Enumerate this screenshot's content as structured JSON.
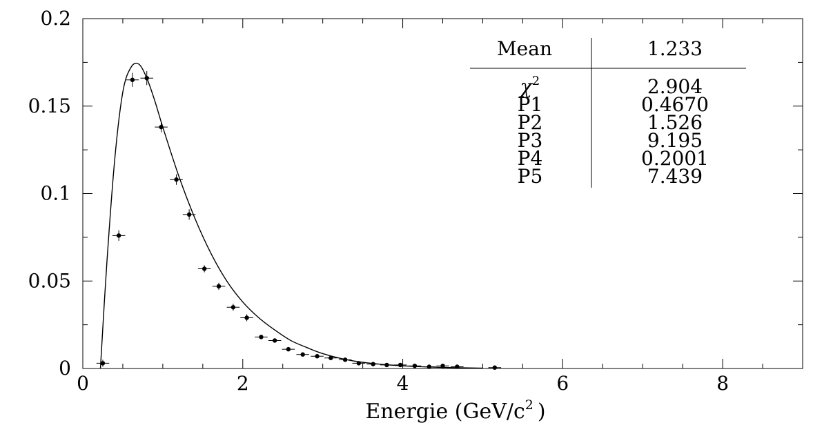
{
  "chart_data": {
    "type": "scatter",
    "xlabel": "Energie (GeV/c",
    "xlabel_sup": "2",
    "xlabel_close": ")",
    "ylabel": "",
    "xlim": [
      0,
      9
    ],
    "ylim": [
      0,
      0.2
    ],
    "x_ticks": [
      {
        "value": 0,
        "label": "0"
      },
      {
        "value": 2,
        "label": "2"
      },
      {
        "value": 4,
        "label": "4"
      },
      {
        "value": 6,
        "label": "6"
      },
      {
        "value": 8,
        "label": "8"
      }
    ],
    "y_ticks": [
      {
        "value": 0,
        "label": "0"
      },
      {
        "value": 0.05,
        "label": "0.05"
      },
      {
        "value": 0.1,
        "label": "0.1"
      },
      {
        "value": 0.15,
        "label": "0.15"
      },
      {
        "value": 0.2,
        "label": "0.2"
      }
    ],
    "x_minor_step": 0.5,
    "y_minor_step": 0.025,
    "grid": false,
    "legend": "none",
    "series": [
      {
        "kind": "points_with_errors",
        "x": [
          0.25,
          0.45,
          0.62,
          0.8,
          0.98,
          1.17,
          1.33,
          1.52,
          1.7,
          1.88,
          2.05,
          2.23,
          2.4,
          2.57,
          2.75,
          2.93,
          3.1,
          3.28,
          3.45,
          3.63,
          3.8,
          3.97,
          4.15,
          4.33,
          4.5,
          4.68,
          5.15
        ],
        "y": [
          0.003,
          0.076,
          0.165,
          0.166,
          0.138,
          0.108,
          0.088,
          0.057,
          0.047,
          0.035,
          0.029,
          0.018,
          0.016,
          0.011,
          0.008,
          0.007,
          0.006,
          0.005,
          0.003,
          0.0025,
          0.002,
          0.002,
          0.0015,
          0.001,
          0.0015,
          0.001,
          0.0005
        ],
        "xerr": [
          0.08,
          0.08,
          0.08,
          0.08,
          0.08,
          0.08,
          0.08,
          0.08,
          0.08,
          0.08,
          0.08,
          0.08,
          0.08,
          0.08,
          0.08,
          0.08,
          0.08,
          0.08,
          0.08,
          0.08,
          0.08,
          0.08,
          0.08,
          0.08,
          0.08,
          0.08,
          0.08
        ],
        "yerr": [
          0.002,
          0.003,
          0.004,
          0.004,
          0.003,
          0.003,
          0.003,
          0.002,
          0.002,
          0.002,
          0.002,
          0.001,
          0.001,
          0.001,
          0.001,
          0.001,
          0.001,
          0.001,
          0.001,
          0.001,
          0.001,
          0.001,
          0.001,
          0.001,
          0.001,
          0.001,
          0.001
        ]
      },
      {
        "kind": "fit_curve",
        "x": [
          0.22,
          0.3,
          0.4,
          0.5,
          0.6,
          0.7,
          0.8,
          0.9,
          1.0,
          1.2,
          1.4,
          1.6,
          1.8,
          2.0,
          2.2,
          2.4,
          2.6,
          2.8,
          3.0,
          3.3,
          3.6,
          4.0,
          4.5,
          5.0
        ],
        "y": [
          0.0,
          0.06,
          0.12,
          0.158,
          0.172,
          0.174,
          0.166,
          0.153,
          0.138,
          0.11,
          0.086,
          0.066,
          0.05,
          0.038,
          0.029,
          0.022,
          0.016,
          0.012,
          0.0085,
          0.005,
          0.003,
          0.0015,
          0.0006,
          0.0002
        ]
      }
    ],
    "stats": {
      "header_label": "Mean",
      "header_value": "1.233",
      "rows": [
        {
          "label": "χ",
          "sup": "2",
          "value": "2.904"
        },
        {
          "label": "P1",
          "sup": "",
          "value": "0.4670"
        },
        {
          "label": "P2",
          "sup": "",
          "value": "1.526"
        },
        {
          "label": "P3",
          "sup": "",
          "value": "9.195"
        },
        {
          "label": "P4",
          "sup": "",
          "value": "0.2001"
        },
        {
          "label": "P5",
          "sup": "",
          "value": "7.439"
        }
      ]
    }
  }
}
